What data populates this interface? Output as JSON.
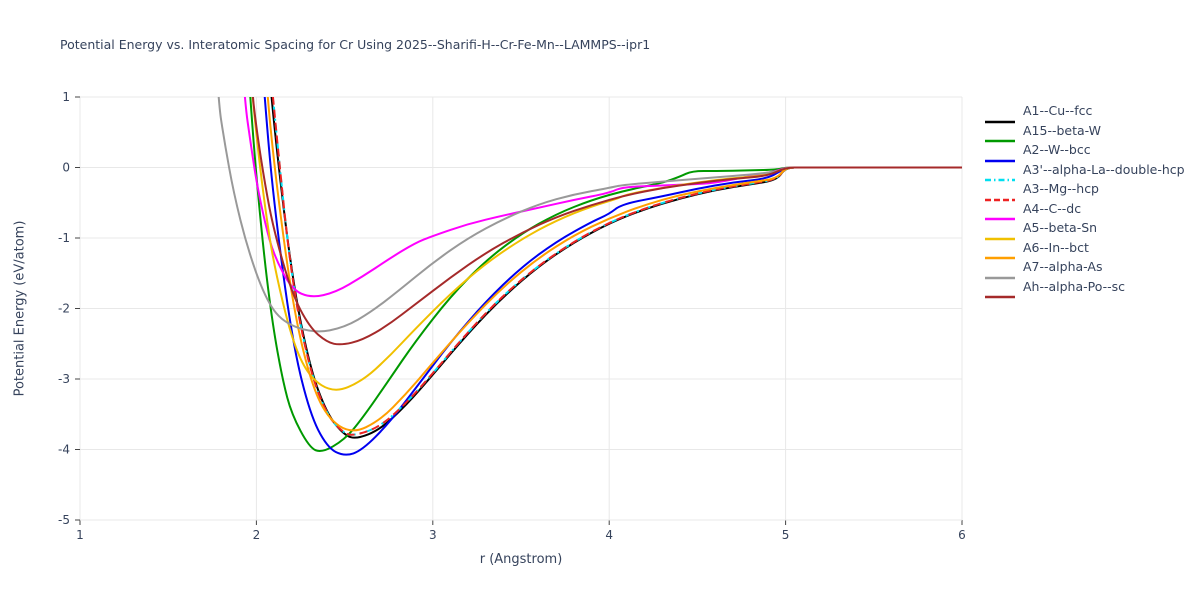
{
  "chart_data": {
    "type": "line",
    "title": "Potential Energy vs. Interatomic Spacing for Cr Using 2025--Sharifi-H--Cr-Fe-Mn--LAMMPS--ipr1",
    "xlabel": "r (Angstrom)",
    "ylabel": "Potential Energy (eV/atom)",
    "xlim": [
      1,
      6
    ],
    "ylim": [
      -5,
      1
    ],
    "x_ticks": [
      1,
      2,
      3,
      4,
      5,
      6
    ],
    "y_ticks": [
      1,
      0,
      -1,
      -2,
      -3,
      -4,
      -5
    ],
    "grid": true,
    "legend_position": "right-outside",
    "colors": {
      "text": "#36435c",
      "grid": "#e8e8e8",
      "tick": "#444444",
      "background": "#ffffff"
    },
    "series": [
      {
        "name": "A1--Cu--fcc",
        "color": "#000000",
        "dash": "solid",
        "points": [
          [
            1.97,
            9.0
          ],
          [
            2.0,
            3.9
          ],
          [
            2.05,
            2.06
          ],
          [
            2.1,
            0.57
          ],
          [
            2.2,
            -1.54
          ],
          [
            2.3,
            -2.81
          ],
          [
            2.4,
            -3.5
          ],
          [
            2.5,
            -3.8
          ],
          [
            2.57,
            -3.85
          ],
          [
            2.7,
            -3.72
          ],
          [
            2.85,
            -3.37
          ],
          [
            3.0,
            -2.94
          ],
          [
            3.2,
            -2.35
          ],
          [
            3.4,
            -1.83
          ],
          [
            3.6,
            -1.4
          ],
          [
            3.8,
            -1.06
          ],
          [
            4.0,
            -0.79
          ],
          [
            4.2,
            -0.59
          ],
          [
            4.4,
            -0.44
          ],
          [
            4.6,
            -0.32
          ],
          [
            4.8,
            -0.24
          ],
          [
            4.95,
            -0.18
          ],
          [
            5.0,
            0
          ],
          [
            5.1,
            0
          ],
          [
            6.0,
            0
          ]
        ]
      },
      {
        "name": "A15--beta-W",
        "color": "#009900",
        "dash": "solid",
        "points": [
          [
            1.9,
            4.0
          ],
          [
            1.93,
            2.35
          ],
          [
            1.97,
            0.81
          ],
          [
            2.0,
            -0.14
          ],
          [
            2.05,
            -1.41
          ],
          [
            2.1,
            -2.35
          ],
          [
            2.15,
            -3.03
          ],
          [
            2.2,
            -3.5
          ],
          [
            2.3,
            -3.97
          ],
          [
            2.37,
            -4.05
          ],
          [
            2.5,
            -3.86
          ],
          [
            2.6,
            -3.56
          ],
          [
            2.75,
            -3.02
          ],
          [
            2.9,
            -2.47
          ],
          [
            3.1,
            -1.83
          ],
          [
            3.3,
            -1.32
          ],
          [
            3.5,
            -0.94
          ],
          [
            3.7,
            -0.66
          ],
          [
            3.9,
            -0.46
          ],
          [
            4.1,
            -0.32
          ],
          [
            4.3,
            -0.22
          ],
          [
            4.4,
            -0.13
          ],
          [
            4.47,
            -0.05
          ],
          [
            4.6,
            -0.05
          ],
          [
            4.8,
            -0.04
          ],
          [
            4.95,
            -0.03
          ],
          [
            5.0,
            0
          ],
          [
            5.1,
            0
          ],
          [
            6.0,
            0
          ]
        ]
      },
      {
        "name": "A2--W--bcc",
        "color": "#0000f0",
        "dash": "solid",
        "points": [
          [
            1.97,
            5.5
          ],
          [
            2.0,
            2.64
          ],
          [
            2.05,
            0.87
          ],
          [
            2.1,
            -0.52
          ],
          [
            2.2,
            -2.42
          ],
          [
            2.3,
            -3.47
          ],
          [
            2.4,
            -3.97
          ],
          [
            2.5,
            -4.1
          ],
          [
            2.6,
            -4.01
          ],
          [
            2.75,
            -3.63
          ],
          [
            2.9,
            -3.14
          ],
          [
            3.1,
            -2.48
          ],
          [
            3.3,
            -1.9
          ],
          [
            3.5,
            -1.42
          ],
          [
            3.7,
            -1.05
          ],
          [
            3.9,
            -0.77
          ],
          [
            4.0,
            -0.66
          ],
          [
            4.07,
            -0.52
          ],
          [
            4.3,
            -0.41
          ],
          [
            4.5,
            -0.3
          ],
          [
            4.7,
            -0.21
          ],
          [
            4.9,
            -0.16
          ],
          [
            5.0,
            0
          ],
          [
            5.1,
            0
          ],
          [
            6.0,
            0
          ]
        ]
      },
      {
        "name": "A3'--alpha-La--double-hcp",
        "color": "#00dff0",
        "dash": "dashdot",
        "points": [
          [
            1.98,
            8.0
          ],
          [
            2.0,
            3.8
          ],
          [
            2.06,
            1.9
          ],
          [
            2.12,
            0.3
          ],
          [
            2.2,
            -1.6
          ],
          [
            2.3,
            -2.85
          ],
          [
            2.4,
            -3.52
          ],
          [
            2.5,
            -3.78
          ],
          [
            2.56,
            -3.8
          ],
          [
            2.7,
            -3.68
          ],
          [
            2.85,
            -3.34
          ],
          [
            3.0,
            -2.92
          ],
          [
            3.2,
            -2.33
          ],
          [
            3.4,
            -1.81
          ],
          [
            3.6,
            -1.39
          ],
          [
            3.8,
            -1.05
          ],
          [
            4.0,
            -0.78
          ],
          [
            4.2,
            -0.58
          ],
          [
            4.4,
            -0.43
          ],
          [
            4.6,
            -0.31
          ],
          [
            4.8,
            -0.23
          ],
          [
            4.95,
            -0.17
          ],
          [
            5.0,
            0
          ],
          [
            5.1,
            0
          ],
          [
            6.0,
            0
          ]
        ]
      },
      {
        "name": "A3--Mg--hcp",
        "color": "#ee2222",
        "dash": "dashed",
        "points": [
          [
            1.98,
            8.0
          ],
          [
            2.0,
            3.8
          ],
          [
            2.06,
            1.9
          ],
          [
            2.12,
            0.3
          ],
          [
            2.2,
            -1.6
          ],
          [
            2.3,
            -2.85
          ],
          [
            2.4,
            -3.52
          ],
          [
            2.5,
            -3.78
          ],
          [
            2.56,
            -3.8
          ],
          [
            2.7,
            -3.68
          ],
          [
            2.85,
            -3.34
          ],
          [
            3.0,
            -2.92
          ],
          [
            3.2,
            -2.33
          ],
          [
            3.4,
            -1.81
          ],
          [
            3.6,
            -1.39
          ],
          [
            3.8,
            -1.05
          ],
          [
            4.0,
            -0.78
          ],
          [
            4.2,
            -0.58
          ],
          [
            4.4,
            -0.43
          ],
          [
            4.6,
            -0.31
          ],
          [
            4.8,
            -0.23
          ],
          [
            4.95,
            -0.17
          ],
          [
            5.0,
            0
          ],
          [
            5.1,
            0
          ],
          [
            6.0,
            0
          ]
        ]
      },
      {
        "name": "A4--C--dc",
        "color": "#ff00ff",
        "dash": "solid",
        "points": [
          [
            1.9,
            2.2
          ],
          [
            1.93,
            1.0
          ],
          [
            1.97,
            0.3
          ],
          [
            2.0,
            -0.2
          ],
          [
            2.05,
            -0.8
          ],
          [
            2.1,
            -1.25
          ],
          [
            2.2,
            -1.73
          ],
          [
            2.31,
            -1.85
          ],
          [
            2.45,
            -1.77
          ],
          [
            2.6,
            -1.55
          ],
          [
            2.75,
            -1.3
          ],
          [
            2.9,
            -1.07
          ],
          [
            3.0,
            -0.97
          ],
          [
            3.2,
            -0.8
          ],
          [
            3.4,
            -0.68
          ],
          [
            3.6,
            -0.57
          ],
          [
            3.8,
            -0.46
          ],
          [
            4.0,
            -0.36
          ],
          [
            4.07,
            -0.28
          ],
          [
            4.25,
            -0.26
          ],
          [
            4.45,
            -0.24
          ],
          [
            4.6,
            -0.22
          ],
          [
            4.8,
            -0.12
          ],
          [
            4.95,
            -0.05
          ],
          [
            5.0,
            0
          ],
          [
            5.1,
            0
          ],
          [
            6.0,
            0
          ]
        ]
      },
      {
        "name": "A5--beta-Sn",
        "color": "#f0c000",
        "dash": "solid",
        "points": [
          [
            1.92,
            3.0
          ],
          [
            1.95,
            1.76
          ],
          [
            2.0,
            0.44
          ],
          [
            2.05,
            -0.59
          ],
          [
            2.1,
            -1.39
          ],
          [
            2.2,
            -2.44
          ],
          [
            2.3,
            -2.98
          ],
          [
            2.44,
            -3.2
          ],
          [
            2.6,
            -3.03
          ],
          [
            2.75,
            -2.69
          ],
          [
            2.9,
            -2.29
          ],
          [
            3.1,
            -1.79
          ],
          [
            3.3,
            -1.36
          ],
          [
            3.5,
            -1.02
          ],
          [
            3.7,
            -0.75
          ],
          [
            3.9,
            -0.55
          ],
          [
            4.05,
            -0.44
          ],
          [
            4.1,
            -0.38
          ],
          [
            4.3,
            -0.29
          ],
          [
            4.5,
            -0.21
          ],
          [
            4.7,
            -0.15
          ],
          [
            4.9,
            -0.11
          ],
          [
            5.0,
            0
          ],
          [
            5.1,
            0
          ],
          [
            6.0,
            0
          ]
        ]
      },
      {
        "name": "A6--In--bct",
        "color": "#ff9f00",
        "dash": "solid",
        "points": [
          [
            2.0,
            3.08
          ],
          [
            2.05,
            1.39
          ],
          [
            2.1,
            0.03
          ],
          [
            2.2,
            -1.87
          ],
          [
            2.3,
            -2.98
          ],
          [
            2.4,
            -3.55
          ],
          [
            2.54,
            -3.78
          ],
          [
            2.7,
            -3.59
          ],
          [
            2.85,
            -3.21
          ],
          [
            3.0,
            -2.77
          ],
          [
            3.2,
            -2.2
          ],
          [
            3.4,
            -1.69
          ],
          [
            3.6,
            -1.28
          ],
          [
            3.8,
            -0.96
          ],
          [
            4.0,
            -0.72
          ],
          [
            4.2,
            -0.53
          ],
          [
            4.4,
            -0.39
          ],
          [
            4.6,
            -0.29
          ],
          [
            4.8,
            -0.21
          ],
          [
            4.95,
            -0.16
          ],
          [
            5.0,
            0
          ],
          [
            5.1,
            0
          ],
          [
            6.0,
            0
          ]
        ]
      },
      {
        "name": "A7--alpha-As",
        "color": "#999999",
        "dash": "solid",
        "points": [
          [
            1.75,
            2.5
          ],
          [
            1.78,
            1.0
          ],
          [
            1.82,
            0.35
          ],
          [
            1.87,
            -0.35
          ],
          [
            1.95,
            -1.15
          ],
          [
            2.05,
            -1.85
          ],
          [
            2.15,
            -2.2
          ],
          [
            2.33,
            -2.35
          ],
          [
            2.5,
            -2.27
          ],
          [
            2.65,
            -2.05
          ],
          [
            2.8,
            -1.76
          ],
          [
            3.0,
            -1.35
          ],
          [
            3.2,
            -1.0
          ],
          [
            3.4,
            -0.73
          ],
          [
            3.6,
            -0.52
          ],
          [
            3.8,
            -0.38
          ],
          [
            4.0,
            -0.29
          ],
          [
            4.07,
            -0.25
          ],
          [
            4.3,
            -0.2
          ],
          [
            4.6,
            -0.14
          ],
          [
            4.8,
            -0.1
          ],
          [
            4.95,
            -0.06
          ],
          [
            5.0,
            0
          ],
          [
            5.1,
            0
          ],
          [
            6.0,
            0
          ]
        ]
      },
      {
        "name": "Ah--alpha-Po--sc",
        "color": "#a52a2a",
        "dash": "solid",
        "points": [
          [
            1.93,
            3.5
          ],
          [
            1.97,
            1.2
          ],
          [
            2.0,
            0.55
          ],
          [
            2.05,
            -0.26
          ],
          [
            2.1,
            -0.9
          ],
          [
            2.2,
            -1.78
          ],
          [
            2.3,
            -2.26
          ],
          [
            2.4,
            -2.48
          ],
          [
            2.48,
            -2.52
          ],
          [
            2.6,
            -2.45
          ],
          [
            2.75,
            -2.23
          ],
          [
            2.9,
            -1.94
          ],
          [
            3.1,
            -1.56
          ],
          [
            3.3,
            -1.21
          ],
          [
            3.5,
            -0.93
          ],
          [
            3.7,
            -0.7
          ],
          [
            3.9,
            -0.53
          ],
          [
            4.1,
            -0.39
          ],
          [
            4.3,
            -0.29
          ],
          [
            4.5,
            -0.22
          ],
          [
            4.7,
            -0.16
          ],
          [
            4.9,
            -0.12
          ],
          [
            5.0,
            0
          ],
          [
            5.1,
            0
          ],
          [
            6.0,
            0
          ]
        ]
      }
    ]
  }
}
